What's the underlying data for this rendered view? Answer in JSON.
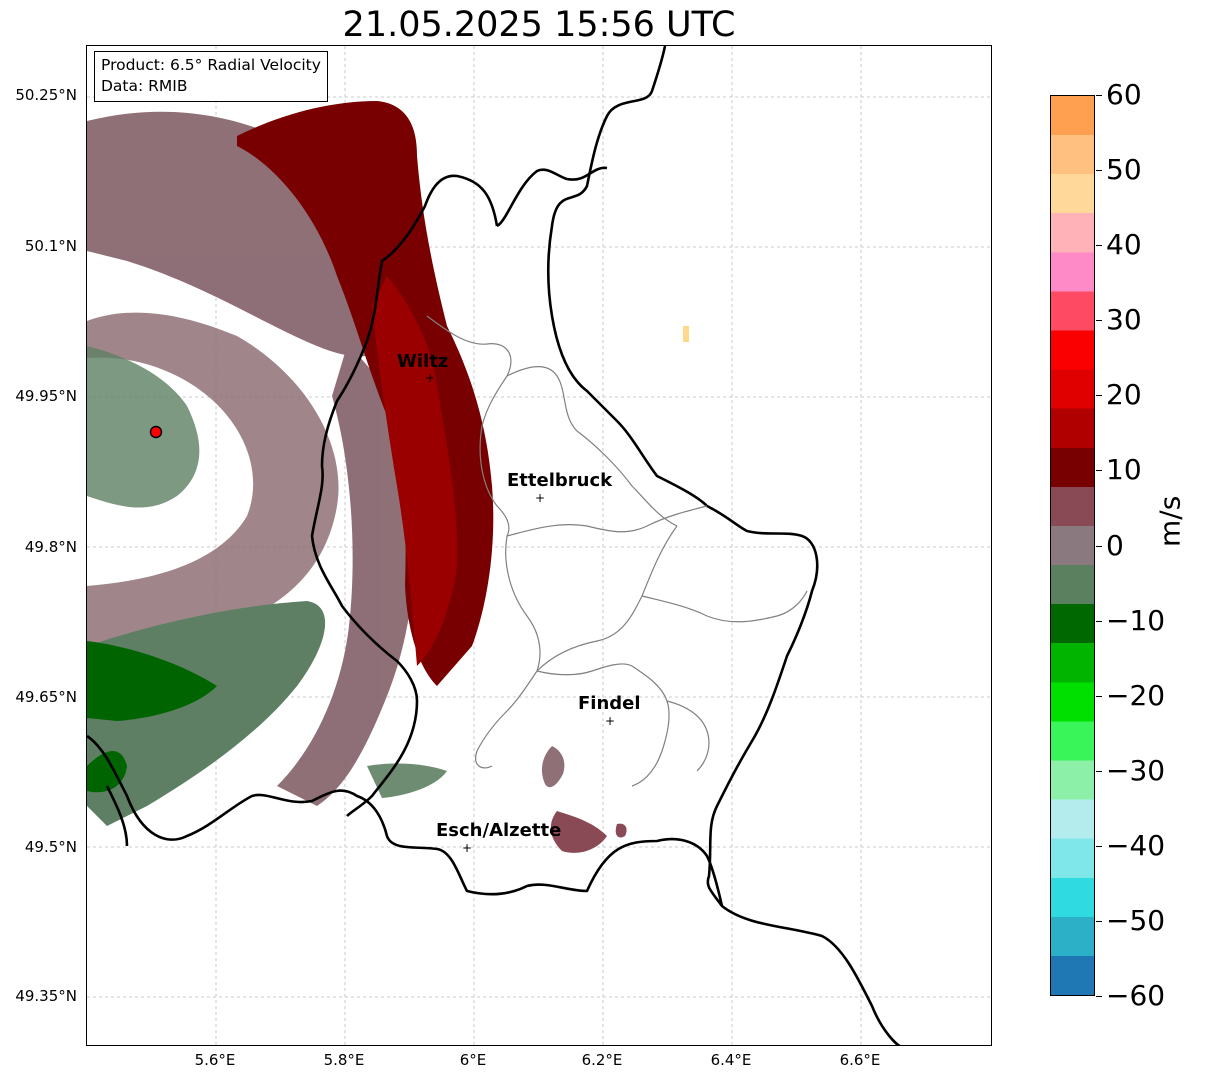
{
  "title": "21.05.2025 15:56 UTC",
  "info": {
    "product": "Product: 6.5° Radial Velocity",
    "data": "Data: RMIB"
  },
  "lat_ticks": [
    "50.25°N",
    "50.1°N",
    "49.95°N",
    "49.8°N",
    "49.65°N",
    "49.5°N",
    "49.35°N"
  ],
  "lon_ticks": [
    "5.6°E",
    "5.8°E",
    "6°E",
    "6.2°E",
    "6.4°E",
    "6.6°E"
  ],
  "cities": [
    {
      "name": "Wiltz"
    },
    {
      "name": "Ettelbruck"
    },
    {
      "name": "Findel"
    },
    {
      "name": "Esch/Alzette"
    }
  ],
  "colorbar": {
    "unit": "m/s",
    "min": -60,
    "max": 60,
    "tick_labels": [
      "60",
      "50",
      "40",
      "30",
      "20",
      "10",
      "0",
      "−10",
      "−20",
      "−30",
      "−40",
      "−50",
      "−60"
    ],
    "color_stops": [
      "#1f77b4",
      "#2bb0c7",
      "#2fdbe0",
      "#7fe6ea",
      "#b4ecee",
      "#8df0a8",
      "#39f55a",
      "#00e000",
      "#00b400",
      "#006800",
      "#5a8060",
      "#8a7a80",
      "#8a4a55",
      "#780000",
      "#b00000",
      "#e00000",
      "#fa0000",
      "#ff4a63",
      "#ff8ac8",
      "#ffb2b8",
      "#ffd89a",
      "#ffc080",
      "#ffa050"
    ]
  },
  "colors": {
    "border": "#000000",
    "district": "#808080",
    "grid": "#bbbbbb",
    "radar_site": "#ff0000"
  }
}
